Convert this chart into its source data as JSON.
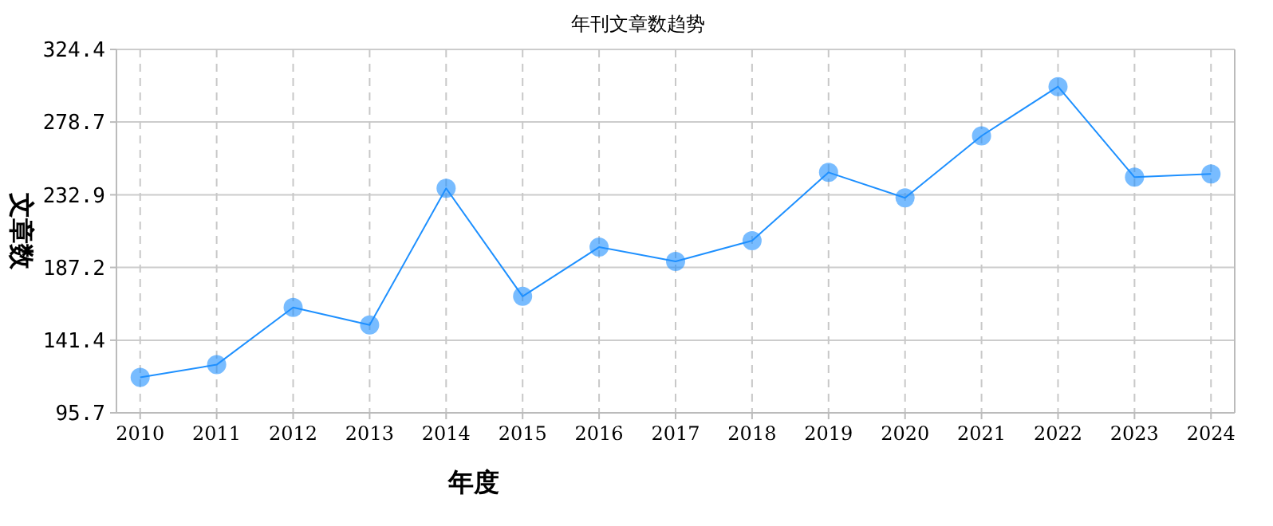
{
  "chart_data": {
    "type": "line",
    "title": "年刊文章数趋势",
    "xlabel": "年度",
    "ylabel": "文章数",
    "categories": [
      "2010",
      "2011",
      "2012",
      "2013",
      "2014",
      "2015",
      "2016",
      "2017",
      "2018",
      "2019",
      "2020",
      "2021",
      "2022",
      "2023",
      "2024"
    ],
    "series": [
      {
        "color": "#1e90ff",
        "values": [
          118,
          126,
          162,
          151,
          237,
          169,
          200,
          191,
          204,
          247,
          231,
          270,
          301,
          244,
          246
        ]
      }
    ],
    "ylim": [
      95.7,
      324.4
    ],
    "yticks": [
      {
        "value": 95.7,
        "label": "95.7"
      },
      {
        "value": 141.4,
        "label": "141.4"
      },
      {
        "value": 187.2,
        "label": "187.2"
      },
      {
        "value": 232.9,
        "label": "232.9"
      },
      {
        "value": 278.7,
        "label": "278.7"
      },
      {
        "value": 324.4,
        "label": "324.4"
      }
    ],
    "grid": true,
    "marker": "circle",
    "line_style": "solid"
  }
}
